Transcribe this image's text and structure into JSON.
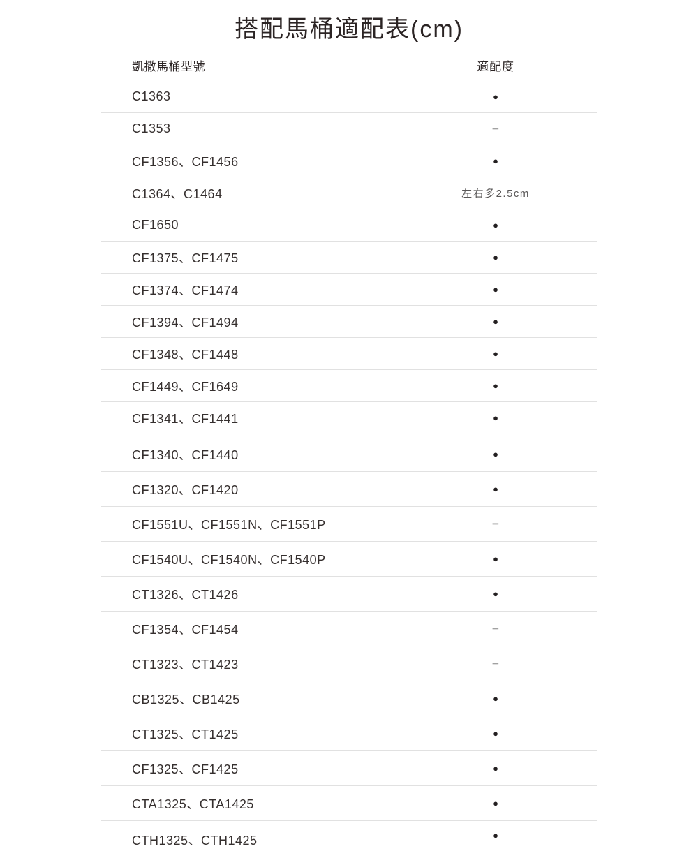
{
  "page": {
    "title": "搭配馬桶適配表(cm)"
  },
  "table": {
    "header": {
      "model_col": "凱撒馬桶型號",
      "fit_col": "適配度"
    },
    "sections": [
      {
        "rows": [
          {
            "model": "C1363",
            "fit_type": "dot",
            "fit_text": "●"
          },
          {
            "model": "C1353",
            "fit_type": "dash",
            "fit_text": "−"
          },
          {
            "model": "CF1356、CF1456",
            "fit_type": "dot",
            "fit_text": "●"
          },
          {
            "model": "C1364、C1464",
            "fit_type": "note",
            "fit_text": "左右多2.5cm"
          },
          {
            "model": "CF1650",
            "fit_type": "dot",
            "fit_text": "●"
          },
          {
            "model": "CF1375、CF1475",
            "fit_type": "dot",
            "fit_text": "●"
          },
          {
            "model": "CF1374、CF1474",
            "fit_type": "dot",
            "fit_text": "●"
          },
          {
            "model": "CF1394、CF1494",
            "fit_type": "dot",
            "fit_text": "●"
          },
          {
            "model": "CF1348、CF1448",
            "fit_type": "dot",
            "fit_text": "●"
          },
          {
            "model": "CF1449、CF1649",
            "fit_type": "dot",
            "fit_text": "●"
          },
          {
            "model": "CF1341、CF1441",
            "fit_type": "dot",
            "fit_text": "●"
          }
        ]
      },
      {
        "rows": [
          {
            "model": "CF1340、CF1440",
            "fit_type": "dot",
            "fit_text": "●"
          },
          {
            "model": "CF1320、CF1420",
            "fit_type": "dot",
            "fit_text": "●"
          },
          {
            "model": "CF1551U、CF1551N、CF1551P",
            "fit_type": "dash",
            "fit_text": "−"
          },
          {
            "model": "CF1540U、CF1540N、CF1540P",
            "fit_type": "dot",
            "fit_text": "●"
          },
          {
            "model": "CT1326、CT1426",
            "fit_type": "dot",
            "fit_text": "●"
          },
          {
            "model": "CF1354、CF1454",
            "fit_type": "dash",
            "fit_text": "−"
          },
          {
            "model": "CT1323、CT1423",
            "fit_type": "dash",
            "fit_text": "−"
          },
          {
            "model": "CB1325、CB1425",
            "fit_type": "dot",
            "fit_text": "●"
          },
          {
            "model": "CT1325、CT1425",
            "fit_type": "dot",
            "fit_text": "●"
          },
          {
            "model": "CF1325、CF1425",
            "fit_type": "dot",
            "fit_text": "●"
          },
          {
            "model": "CTA1325、CTA1425",
            "fit_type": "dot",
            "fit_text": "●"
          },
          {
            "model": "CTH1325、CTH1425",
            "fit_type": "dot",
            "fit_text": "●"
          }
        ]
      }
    ]
  },
  "colors": {
    "text": "#2b2424",
    "model_text": "#352f2e",
    "divider_line": "#e1e1e1",
    "dot": "#231f20",
    "dash": "#a1a1a1",
    "note_text": "#595757",
    "background": "#ffffff"
  }
}
